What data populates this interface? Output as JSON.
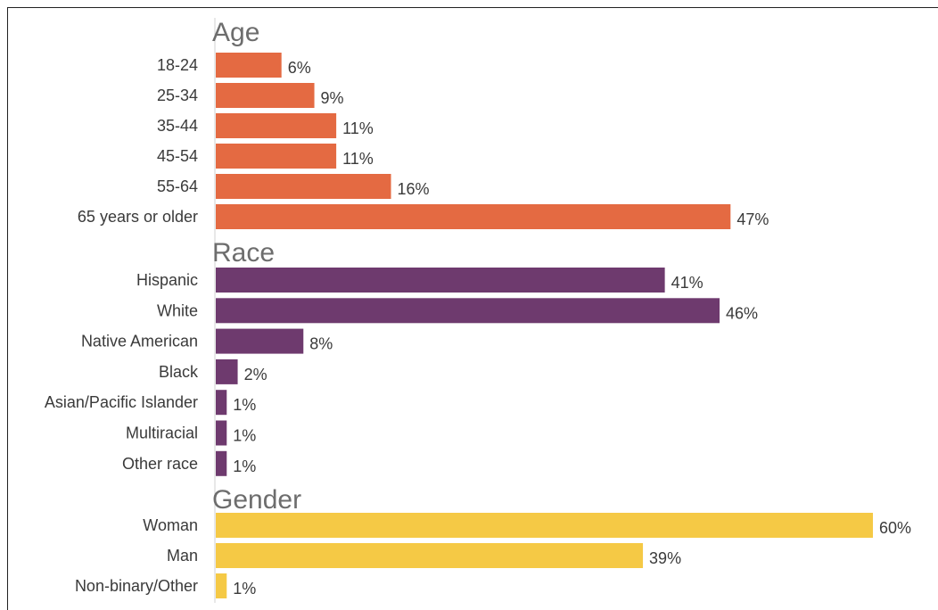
{
  "chart_data": {
    "type": "bar",
    "orientation": "horizontal",
    "grid": false,
    "xlim": [
      0,
      60
    ],
    "unit": "%",
    "groups": [
      {
        "title": "Age",
        "color": "#E46A42",
        "categories": [
          "18-24",
          "25-34",
          "35-44",
          "45-54",
          "55-64",
          "65 years or older"
        ],
        "values": [
          6,
          9,
          11,
          11,
          16,
          47
        ],
        "labels": [
          "6%",
          "9%",
          "11%",
          "11%",
          "16%",
          "47%"
        ]
      },
      {
        "title": "Race",
        "color": "#6E3A6E",
        "categories": [
          "Hispanic",
          "White",
          "Native American",
          "Black",
          "Asian/Pacific Islander",
          "Multiracial",
          "Other race"
        ],
        "values": [
          41,
          46,
          8,
          2,
          1,
          1,
          1
        ],
        "labels": [
          "41%",
          "46%",
          "8%",
          "2%",
          "1%",
          "1%",
          "1%"
        ]
      },
      {
        "title": "Gender",
        "color": "#F5C945",
        "categories": [
          "Woman",
          "Man",
          "Non-binary/Other"
        ],
        "values": [
          60,
          39,
          1
        ],
        "labels": [
          "60%",
          "39%",
          "1%"
        ]
      }
    ]
  }
}
